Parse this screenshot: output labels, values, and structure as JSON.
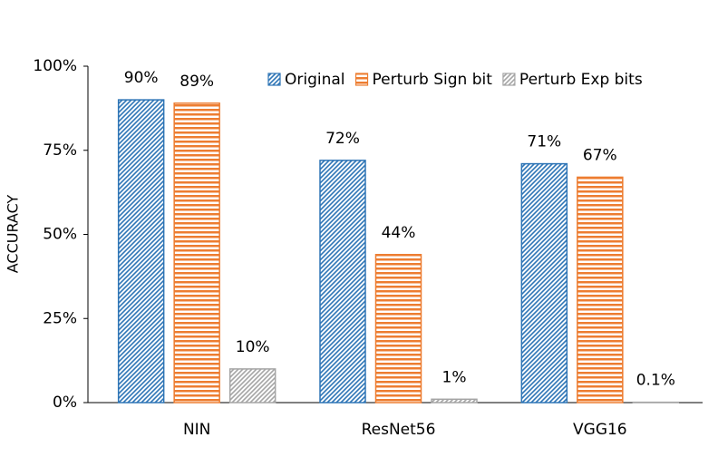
{
  "chart_data": {
    "type": "bar",
    "y_label": "ACCURACY",
    "categories": [
      "NIN",
      "ResNet56",
      "VGG16"
    ],
    "series": [
      {
        "name": "Original",
        "color": "#2e75b6",
        "pattern": "diagonal",
        "values": [
          90,
          72,
          71
        ],
        "value_labels": [
          "90%",
          "72%",
          "71%"
        ]
      },
      {
        "name": "Perturb Sign bit",
        "color": "#ed7d31",
        "pattern": "horizontal",
        "values": [
          89,
          44,
          67
        ],
        "value_labels": [
          "89%",
          "44%",
          "67%"
        ]
      },
      {
        "name": "Perturb Exp bits",
        "color": "#a5a5a5",
        "pattern": "diagonal",
        "values": [
          10,
          1,
          0.1
        ],
        "value_labels": [
          "10%",
          "1%",
          "0.1%"
        ]
      }
    ],
    "ylim": [
      0,
      100
    ],
    "yticks": [
      {
        "value": 0,
        "label": "0%"
      },
      {
        "value": 25,
        "label": "25%"
      },
      {
        "value": 50,
        "label": "50%"
      },
      {
        "value": 75,
        "label": "75%"
      },
      {
        "value": 100,
        "label": "100%"
      }
    ],
    "legend": "top"
  }
}
